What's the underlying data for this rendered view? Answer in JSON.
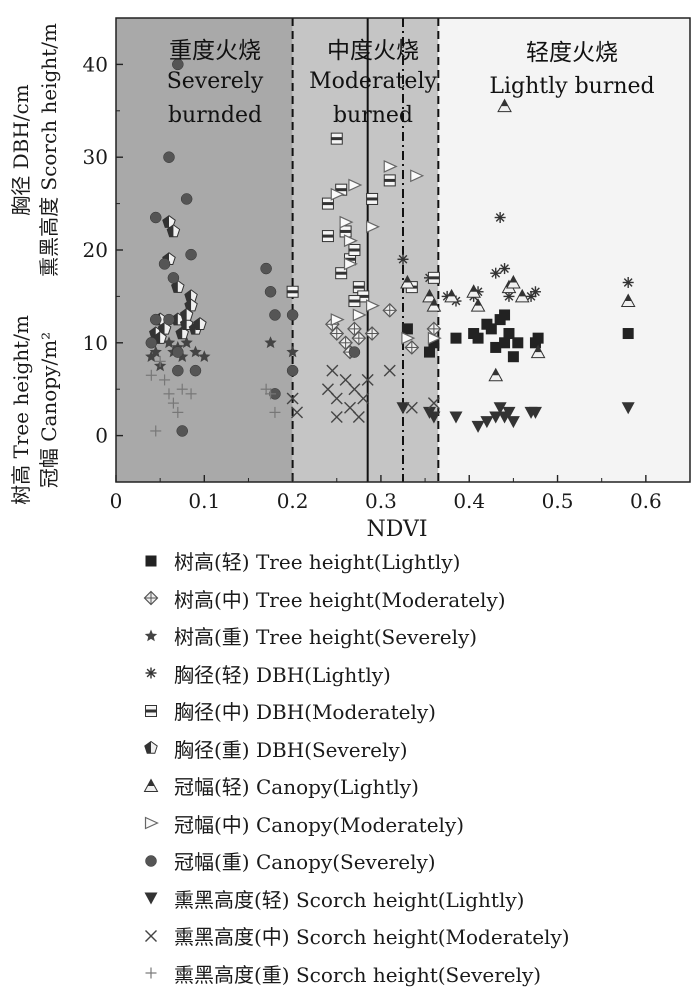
{
  "chart_data": {
    "type": "scatter",
    "xlabel": "NDVI",
    "ylabel": {
      "line1": "树高 Tree height/m",
      "line2": "冠幅 Canopy/m²",
      "line3": "熏黑高度 Scorch height/m",
      "line4": "胸径 DBH/cm"
    },
    "xlim": [
      0,
      0.65
    ],
    "ylim": [
      -5,
      45
    ],
    "xticks": [
      "0",
      "0.1",
      "0.2",
      "0.3",
      "0.4",
      "0.5",
      "0.6"
    ],
    "yticks": [
      "0",
      "10",
      "20",
      "30",
      "40"
    ],
    "zones": [
      {
        "label_zh": "重度火烧",
        "label_en1": "Severely",
        "label_en2": "burnded",
        "x_range": [
          0,
          0.2
        ],
        "color": "#a9a9a9"
      },
      {
        "label_zh": "中度火烧",
        "label_en1": "Moderately",
        "label_en2": "burned",
        "x_range": [
          0.2,
          0.365
        ],
        "color": "#c5c5c5"
      },
      {
        "label_zh": "轻度火烧",
        "label_en1": "Lightly burned",
        "label_en2": "",
        "x_range": [
          0.365,
          0.65
        ],
        "color": "#f4f4f4"
      }
    ],
    "vlines": [
      {
        "x": 0.2,
        "style": "dashed"
      },
      {
        "x": 0.285,
        "style": "solid"
      },
      {
        "x": 0.325,
        "style": "dashdot"
      },
      {
        "x": 0.365,
        "style": "dashed"
      }
    ],
    "series": [
      {
        "name": "树高(轻) Tree height(Lightly)",
        "marker": "square",
        "color": "#222222",
        "points": [
          [
            0.33,
            11.5
          ],
          [
            0.36,
            10
          ],
          [
            0.355,
            9
          ],
          [
            0.385,
            10.5
          ],
          [
            0.41,
            10.5
          ],
          [
            0.405,
            11
          ],
          [
            0.42,
            12
          ],
          [
            0.425,
            11.5
          ],
          [
            0.43,
            9.5
          ],
          [
            0.435,
            12.5
          ],
          [
            0.44,
            13
          ],
          [
            0.44,
            10
          ],
          [
            0.445,
            11
          ],
          [
            0.45,
            8.5
          ],
          [
            0.455,
            10
          ],
          [
            0.475,
            10
          ],
          [
            0.478,
            10.5
          ],
          [
            0.58,
            11
          ]
        ]
      },
      {
        "name": "树高(中) Tree height(Moderately)",
        "marker": "diamond",
        "color": "#555555",
        "points": [
          [
            0.245,
            12
          ],
          [
            0.25,
            11
          ],
          [
            0.26,
            10
          ],
          [
            0.265,
            9
          ],
          [
            0.27,
            11.5
          ],
          [
            0.275,
            10.5
          ],
          [
            0.29,
            11
          ],
          [
            0.31,
            13.5
          ],
          [
            0.335,
            9.5
          ],
          [
            0.36,
            11.5
          ]
        ]
      },
      {
        "name": "树高(重) Tree height(Severely)",
        "marker": "star",
        "color": "#444444",
        "points": [
          [
            0.04,
            8.5
          ],
          [
            0.045,
            9
          ],
          [
            0.05,
            7.5
          ],
          [
            0.06,
            10
          ],
          [
            0.065,
            9
          ],
          [
            0.07,
            9.5
          ],
          [
            0.075,
            8.5
          ],
          [
            0.08,
            10
          ],
          [
            0.09,
            9
          ],
          [
            0.1,
            8.5
          ],
          [
            0.175,
            10
          ],
          [
            0.2,
            9
          ]
        ]
      },
      {
        "name": "胸径(轻) DBH(Lightly)",
        "marker": "asterisk",
        "color": "#333333",
        "points": [
          [
            0.325,
            19
          ],
          [
            0.355,
            17
          ],
          [
            0.375,
            15
          ],
          [
            0.385,
            14.5
          ],
          [
            0.405,
            15
          ],
          [
            0.41,
            15.5
          ],
          [
            0.43,
            17.5
          ],
          [
            0.435,
            23.5
          ],
          [
            0.44,
            18
          ],
          [
            0.445,
            15
          ],
          [
            0.47,
            15
          ],
          [
            0.475,
            15.5
          ],
          [
            0.58,
            16.5
          ]
        ]
      },
      {
        "name": "胸径(中) DBH(Moderately)",
        "marker": "halfsquare",
        "color": "#333333",
        "points": [
          [
            0.24,
            25
          ],
          [
            0.25,
            32
          ],
          [
            0.255,
            26.5
          ],
          [
            0.26,
            22
          ],
          [
            0.265,
            19
          ],
          [
            0.27,
            20
          ],
          [
            0.275,
            16
          ],
          [
            0.28,
            15
          ],
          [
            0.29,
            25.5
          ],
          [
            0.31,
            27.5
          ],
          [
            0.335,
            16
          ],
          [
            0.36,
            17
          ],
          [
            0.2,
            15.5
          ],
          [
            0.24,
            21.5
          ],
          [
            0.255,
            17.5
          ],
          [
            0.27,
            14.5
          ]
        ]
      },
      {
        "name": "胸径(重) DBH(Severely)",
        "marker": "halfpentagon",
        "color": "#333333",
        "points": [
          [
            0.045,
            11
          ],
          [
            0.05,
            12.5
          ],
          [
            0.055,
            11.5
          ],
          [
            0.06,
            23
          ],
          [
            0.065,
            22
          ],
          [
            0.07,
            12.5
          ],
          [
            0.075,
            11
          ],
          [
            0.08,
            12
          ],
          [
            0.085,
            15
          ],
          [
            0.085,
            14
          ],
          [
            0.09,
            11.5
          ],
          [
            0.095,
            12
          ],
          [
            0.06,
            19
          ],
          [
            0.07,
            16
          ],
          [
            0.08,
            13
          ],
          [
            0.05,
            10.5
          ]
        ]
      },
      {
        "name": "冠幅(轻) Canopy(Lightly)",
        "marker": "triangle-up",
        "color": "#333333",
        "points": [
          [
            0.33,
            16.5
          ],
          [
            0.355,
            15
          ],
          [
            0.36,
            14
          ],
          [
            0.38,
            15
          ],
          [
            0.405,
            15.5
          ],
          [
            0.41,
            14
          ],
          [
            0.43,
            6.5
          ],
          [
            0.44,
            35.5
          ],
          [
            0.445,
            16
          ],
          [
            0.45,
            16.5
          ],
          [
            0.46,
            15
          ],
          [
            0.478,
            9
          ],
          [
            0.58,
            14.5
          ]
        ]
      },
      {
        "name": "冠幅(中) Canopy(Moderately)",
        "marker": "triangle-right",
        "color": "#666666",
        "points": [
          [
            0.25,
            26
          ],
          [
            0.26,
            23
          ],
          [
            0.265,
            21
          ],
          [
            0.27,
            27
          ],
          [
            0.29,
            22.5
          ],
          [
            0.31,
            29
          ],
          [
            0.34,
            28
          ],
          [
            0.36,
            10.5
          ],
          [
            0.25,
            12.5
          ],
          [
            0.265,
            18.5
          ],
          [
            0.29,
            14
          ],
          [
            0.275,
            13
          ],
          [
            0.33,
            10.5
          ]
        ]
      },
      {
        "name": "冠幅(重) Canopy(Severely)",
        "marker": "circle",
        "color": "#555555",
        "points": [
          [
            0.04,
            10
          ],
          [
            0.045,
            12.5
          ],
          [
            0.045,
            23.5
          ],
          [
            0.055,
            18.5
          ],
          [
            0.06,
            30
          ],
          [
            0.06,
            12.5
          ],
          [
            0.065,
            17
          ],
          [
            0.07,
            9
          ],
          [
            0.07,
            7
          ],
          [
            0.075,
            0.5
          ],
          [
            0.08,
            25.5
          ],
          [
            0.085,
            19.5
          ],
          [
            0.09,
            7
          ],
          [
            0.17,
            18
          ],
          [
            0.175,
            15.5
          ],
          [
            0.18,
            13
          ],
          [
            0.18,
            4.5
          ],
          [
            0.2,
            7
          ],
          [
            0.2,
            13
          ],
          [
            0.27,
            9
          ],
          [
            0.07,
            40
          ]
        ]
      },
      {
        "name": "熏黑高度(轻) Scorch height(Lightly)",
        "marker": "triangle-down",
        "color": "#333333",
        "points": [
          [
            0.325,
            3
          ],
          [
            0.355,
            2.5
          ],
          [
            0.36,
            2
          ],
          [
            0.385,
            2
          ],
          [
            0.41,
            1
          ],
          [
            0.42,
            1.5
          ],
          [
            0.43,
            2
          ],
          [
            0.435,
            3
          ],
          [
            0.44,
            2
          ],
          [
            0.445,
            2.5
          ],
          [
            0.45,
            1.5
          ],
          [
            0.47,
            2.5
          ],
          [
            0.475,
            2.5
          ],
          [
            0.58,
            3
          ]
        ]
      },
      {
        "name": "熏黑高度(中) Scorch height(Moderately)",
        "marker": "x",
        "color": "#444444",
        "points": [
          [
            0.2,
            4
          ],
          [
            0.205,
            2.5
          ],
          [
            0.24,
            5
          ],
          [
            0.245,
            7
          ],
          [
            0.25,
            4
          ],
          [
            0.26,
            6
          ],
          [
            0.265,
            3
          ],
          [
            0.27,
            5
          ],
          [
            0.275,
            2
          ],
          [
            0.28,
            4
          ],
          [
            0.285,
            6
          ],
          [
            0.31,
            7
          ],
          [
            0.335,
            3
          ],
          [
            0.36,
            3.5
          ],
          [
            0.25,
            2
          ]
        ]
      },
      {
        "name": "熏黑高度(重) Scorch height(Severely)",
        "marker": "plus",
        "color": "#777777",
        "points": [
          [
            0.04,
            6.5
          ],
          [
            0.045,
            0.5
          ],
          [
            0.05,
            8
          ],
          [
            0.055,
            6
          ],
          [
            0.06,
            4.5
          ],
          [
            0.065,
            3.5
          ],
          [
            0.07,
            2.5
          ],
          [
            0.075,
            5
          ],
          [
            0.085,
            4.5
          ],
          [
            0.17,
            5
          ],
          [
            0.18,
            2.5
          ],
          [
            0.175,
            4.5
          ]
        ]
      }
    ]
  }
}
